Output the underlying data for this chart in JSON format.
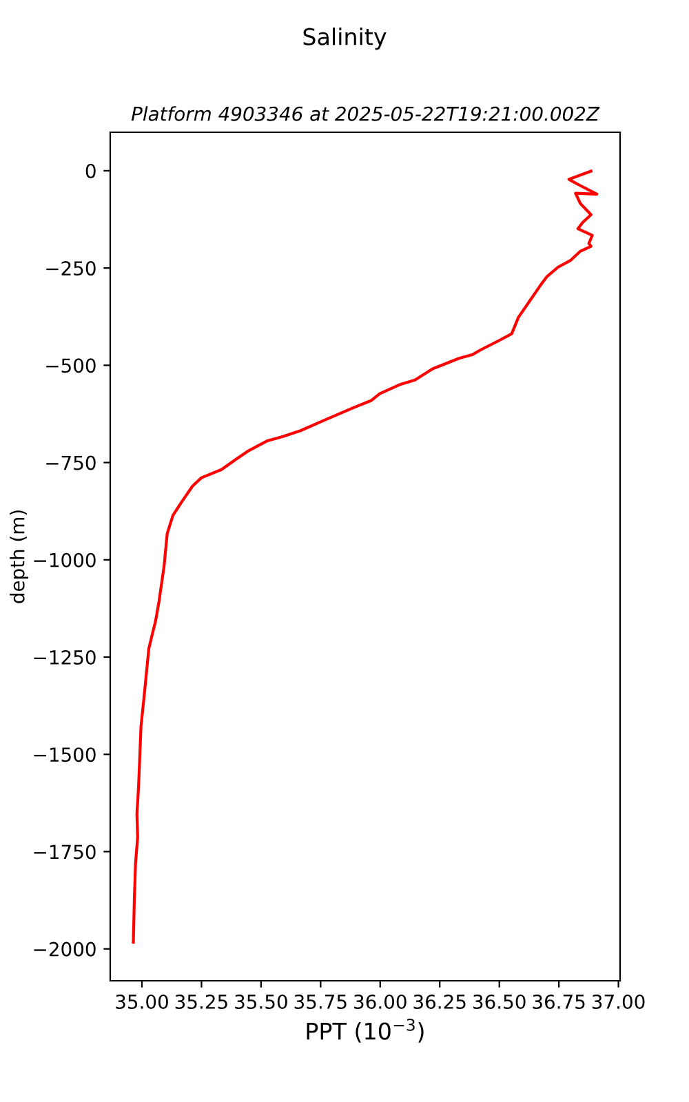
{
  "chart_data": {
    "type": "line",
    "title": "Salinity",
    "subtitle": "Platform 4903346 at 2025-05-22T19:21:00.002Z",
    "xlabel": "PPT (10$^{−3}$)",
    "ylabel": "depth (m)",
    "series": [
      {
        "color": "#ff0000",
        "x": [
          36.885,
          36.792,
          36.833,
          36.91,
          36.82,
          36.84,
          36.885,
          36.85,
          36.83,
          36.89,
          36.876,
          36.885,
          36.84,
          36.8,
          36.746,
          36.7,
          36.672,
          36.626,
          36.58,
          36.552,
          36.497,
          36.423,
          36.386,
          36.331,
          36.22,
          36.146,
          36.081,
          35.998,
          35.961,
          35.888,
          35.777,
          35.666,
          35.592,
          35.527,
          35.444,
          35.389,
          35.334,
          35.25,
          35.213,
          35.167,
          35.13,
          35.106,
          35.093,
          35.071,
          35.057,
          35.029,
          35.01,
          34.996,
          34.986,
          34.979,
          34.982,
          34.973,
          34.968,
          34.964
        ],
        "values": [
          -1,
          -22,
          -36,
          -60,
          -58,
          -84,
          -113,
          -133,
          -149,
          -166,
          -187,
          -194,
          -207,
          -230,
          -248,
          -272,
          -295,
          -336,
          -377,
          -419,
          -437,
          -460,
          -473,
          -482,
          -509,
          -538,
          -550,
          -573,
          -591,
          -609,
          -638,
          -668,
          -683,
          -694,
          -721,
          -744,
          -768,
          -789,
          -810,
          -851,
          -886,
          -933,
          -1016,
          -1110,
          -1158,
          -1228,
          -1346,
          -1429,
          -1582,
          -1653,
          -1712,
          -1783,
          -1877,
          -1983
        ]
      }
    ],
    "xlim": [
      34.867,
      37.007
    ],
    "ylim": [
      -2082,
      99
    ],
    "xticks": [
      {
        "value": 35,
        "label": "35.00"
      },
      {
        "value": 35.25,
        "label": "35.25"
      },
      {
        "value": 35.5,
        "label": "35.50"
      },
      {
        "value": 35.75,
        "label": "35.75"
      },
      {
        "value": 36,
        "label": "36.00"
      },
      {
        "value": 36.25,
        "label": "36.25"
      },
      {
        "value": 36.5,
        "label": "36.50"
      },
      {
        "value": 36.75,
        "label": "36.75"
      },
      {
        "value": 37,
        "label": "37.00"
      }
    ],
    "yticks": [
      {
        "value": 0,
        "label": "0"
      },
      {
        "value": -250,
        "label": "−250"
      },
      {
        "value": -500,
        "label": "−500"
      },
      {
        "value": -750,
        "label": "−750"
      },
      {
        "value": -1000,
        "label": "−1000"
      },
      {
        "value": -1250,
        "label": "−1250"
      },
      {
        "value": -1500,
        "label": "−1500"
      },
      {
        "value": -1750,
        "label": "−1750"
      },
      {
        "value": -2000,
        "label": "−2000"
      }
    ]
  }
}
